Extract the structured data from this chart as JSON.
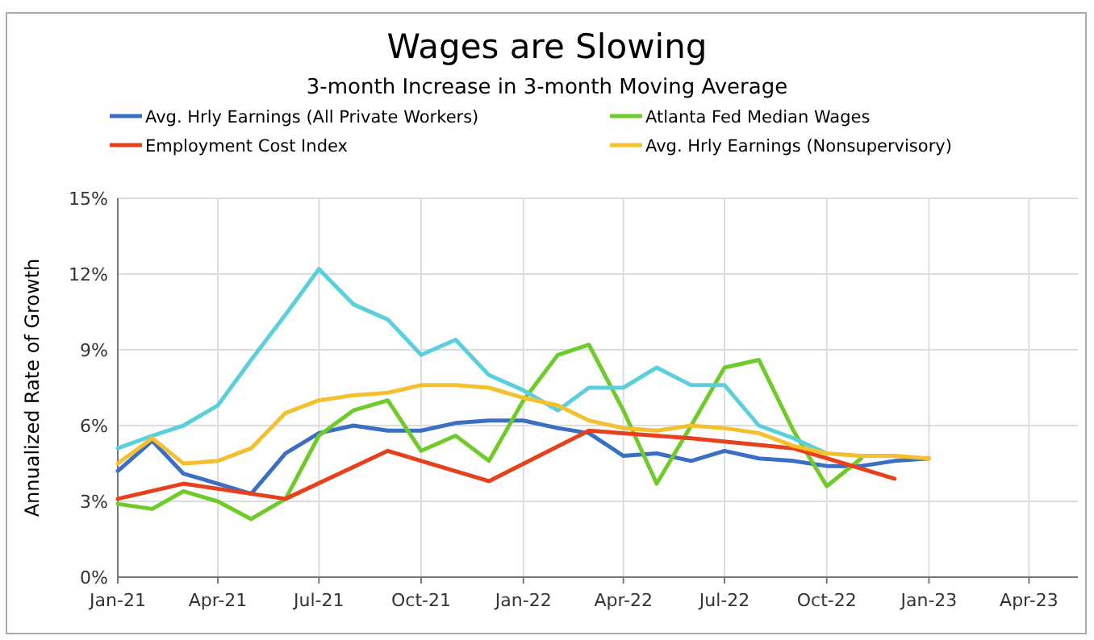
{
  "chart_data": {
    "type": "line",
    "title": "Wages are Slowing",
    "subtitle": "3-month Increase in 3-month Moving Average",
    "ylabel": "Annualized Rate of Growth",
    "xlim": [
      "2021-01",
      "2023-05-15"
    ],
    "xticks": [
      {
        "value": "2021-01",
        "label": "Jan-21"
      },
      {
        "value": "2021-04",
        "label": "Apr-21"
      },
      {
        "value": "2021-07",
        "label": "Jul-21"
      },
      {
        "value": "2021-10",
        "label": "Oct-21"
      },
      {
        "value": "2022-01",
        "label": "Jan-22"
      },
      {
        "value": "2022-04",
        "label": "Apr-22"
      },
      {
        "value": "2022-07",
        "label": "Jul-22"
      },
      {
        "value": "2022-10",
        "label": "Oct-22"
      },
      {
        "value": "2023-01",
        "label": "Jan-23"
      },
      {
        "value": "2023-04",
        "label": "Apr-23"
      }
    ],
    "ylim": [
      0,
      15
    ],
    "yticks": [
      {
        "value": 0,
        "label": "0%"
      },
      {
        "value": 3,
        "label": "3%"
      },
      {
        "value": 6,
        "label": "6%"
      },
      {
        "value": 9,
        "label": "9%"
      },
      {
        "value": 12,
        "label": "12%"
      },
      {
        "value": 15,
        "label": "15%"
      }
    ],
    "grid": true,
    "legend": "top",
    "line_style": "solid",
    "marker": "none",
    "series": [
      {
        "name": "Avg. Hrly Earnings (All Private Workers)",
        "color": "#3a6fc4",
        "x": [
          "2021-01",
          "2021-02",
          "2021-03",
          "2021-04",
          "2021-05",
          "2021-06",
          "2021-07",
          "2021-08",
          "2021-09",
          "2021-10",
          "2021-11",
          "2021-12",
          "2022-01",
          "2022-02",
          "2022-03",
          "2022-04",
          "2022-05",
          "2022-06",
          "2022-07",
          "2022-08",
          "2022-09",
          "2022-10",
          "2022-11",
          "2022-12",
          "2023-01"
        ],
        "values": [
          4.2,
          5.4,
          4.1,
          3.7,
          3.3,
          4.9,
          5.7,
          6.0,
          5.8,
          5.8,
          6.1,
          6.2,
          6.2,
          5.9,
          5.7,
          4.8,
          4.9,
          4.6,
          5.0,
          4.7,
          4.6,
          4.4,
          4.4,
          4.6,
          4.7
        ]
      },
      {
        "name": "Atlanta Fed Median Wages",
        "color": "#6ecb2a",
        "x": [
          "2021-01",
          "2021-02",
          "2021-03",
          "2021-04",
          "2021-05",
          "2021-06",
          "2021-07",
          "2021-08",
          "2021-09",
          "2021-10",
          "2021-11",
          "2021-12",
          "2022-01",
          "2022-02",
          "2022-03",
          "2022-04",
          "2022-05",
          "2022-06",
          "2022-07",
          "2022-08",
          "2022-09",
          "2022-10",
          "2022-11"
        ],
        "values": [
          2.9,
          2.7,
          3.4,
          3.0,
          2.3,
          3.1,
          5.6,
          6.6,
          7.0,
          5.0,
          5.6,
          4.6,
          7.0,
          8.8,
          9.2,
          6.6,
          3.7,
          6.0,
          8.3,
          8.6,
          5.8,
          3.6,
          4.7
        ]
      },
      {
        "color": "#5bcfdb",
        "x": [
          "2021-01",
          "2021-02",
          "2021-03",
          "2021-04",
          "2021-05",
          "2021-06",
          "2021-07",
          "2021-08",
          "2021-09",
          "2021-10",
          "2021-11",
          "2021-12",
          "2022-01",
          "2022-02",
          "2022-03",
          "2022-04",
          "2022-05",
          "2022-06",
          "2022-07",
          "2022-08",
          "2022-09",
          "2022-10"
        ],
        "values": [
          5.1,
          5.6,
          6.0,
          6.8,
          8.6,
          10.4,
          12.2,
          10.8,
          10.2,
          8.8,
          9.4,
          8.0,
          7.4,
          6.6,
          7.5,
          7.5,
          8.3,
          7.6,
          7.6,
          6.0,
          5.5,
          4.9
        ]
      },
      {
        "name": "Employment Cost Index",
        "color": "#e8401c",
        "x": [
          "2021-01",
          "2021-03",
          "2021-06",
          "2021-09",
          "2021-12",
          "2022-03",
          "2022-06",
          "2022-09",
          "2022-12"
        ],
        "values": [
          3.1,
          3.7,
          3.1,
          5.0,
          3.8,
          5.8,
          5.5,
          5.1,
          3.9
        ]
      },
      {
        "name": "Avg. Hrly Earnings (Nonsupervisory)",
        "color": "#f5c02f",
        "x": [
          "2021-01",
          "2021-02",
          "2021-03",
          "2021-04",
          "2021-05",
          "2021-06",
          "2021-07",
          "2021-08",
          "2021-09",
          "2021-10",
          "2021-11",
          "2021-12",
          "2022-01",
          "2022-02",
          "2022-03",
          "2022-04",
          "2022-05",
          "2022-06",
          "2022-07",
          "2022-08",
          "2022-09",
          "2022-10",
          "2022-11",
          "2022-12",
          "2023-01"
        ],
        "values": [
          4.5,
          5.5,
          4.5,
          4.6,
          5.1,
          6.5,
          7.0,
          7.2,
          7.3,
          7.6,
          7.6,
          7.5,
          7.1,
          6.8,
          6.2,
          5.9,
          5.8,
          6.0,
          5.9,
          5.7,
          5.2,
          4.9,
          4.8,
          4.8,
          4.7
        ]
      }
    ]
  }
}
